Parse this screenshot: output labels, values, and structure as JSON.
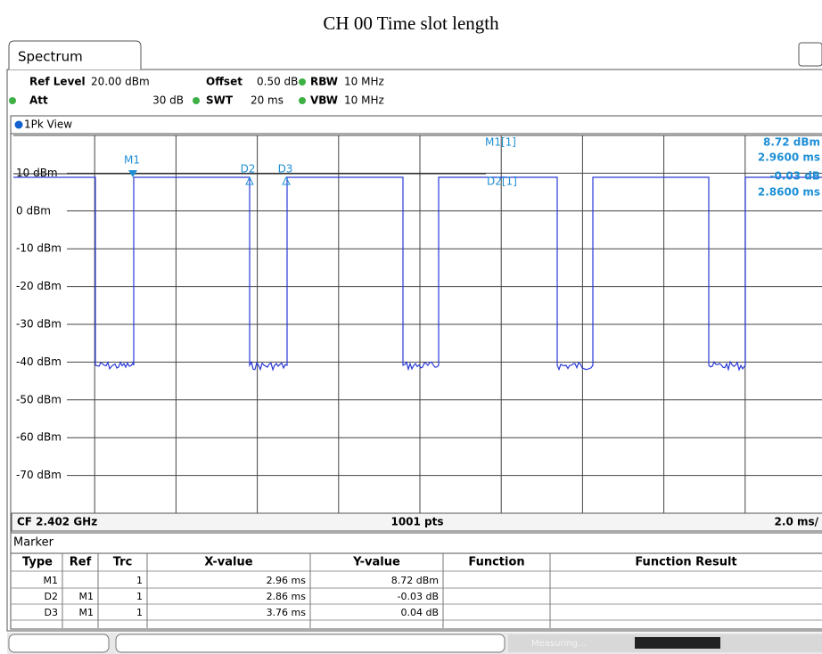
{
  "title": "CH 00 Time slot length",
  "tab": "Spectrum",
  "settings": {
    "ref_level_label": "Ref Level",
    "ref_level": "20.00 dBm",
    "offset_label": "Offset",
    "offset": "0.50 dB",
    "rbw_label": "RBW",
    "rbw": "10 MHz",
    "att_label": "Att",
    "att": "30 dB",
    "swt_label": "SWT",
    "swt": "20 ms",
    "vbw_label": "VBW",
    "vbw": "10 MHz"
  },
  "view": "1Pk View",
  "plot": {
    "ylim": [
      -80,
      20
    ],
    "yticks": [
      {
        "value": 10,
        "label": "10 dBm"
      },
      {
        "value": 0,
        "label": "0 dBm"
      },
      {
        "value": -10,
        "label": "-10 dBm"
      },
      {
        "value": -20,
        "label": "-20 dBm"
      },
      {
        "value": -30,
        "label": "-30 dBm"
      },
      {
        "value": -40,
        "label": "-40 dBm"
      },
      {
        "value": -50,
        "label": "-50 dBm"
      },
      {
        "value": -60,
        "label": "-60 dBm"
      },
      {
        "value": -70,
        "label": "-70 dBm"
      }
    ],
    "markers": [
      "M1",
      "D2",
      "D3"
    ],
    "readout": {
      "m1_name": "M1[1]",
      "m1_level": "8.72 dBm",
      "m1_time": "2.9600 ms",
      "d2_name": "D2[1]",
      "d2_level": "-0.03 dB",
      "d2_time": "2.8600 ms"
    }
  },
  "footer": {
    "center_freq": "CF 2.402 GHz",
    "points": "1001 pts",
    "span": "2.0 ms/"
  },
  "table": {
    "title": "Marker",
    "columns": [
      "Type",
      "Ref",
      "Trc",
      "X-value",
      "Y-value",
      "Function",
      "Function Result"
    ],
    "rows": [
      {
        "type": "M1",
        "trc": "1",
        "x": "2.96 ms",
        "y": "8.72 dBm"
      },
      {
        "type": "D2",
        "ref": "M1",
        "trc": "1",
        "x": "2.86 ms",
        "y": "-0.03 dB"
      },
      {
        "type": "D3",
        "ref": "M1",
        "trc": "1",
        "x": "3.76 ms",
        "y": "0.04 dB"
      }
    ]
  },
  "status": "Measuring..."
}
